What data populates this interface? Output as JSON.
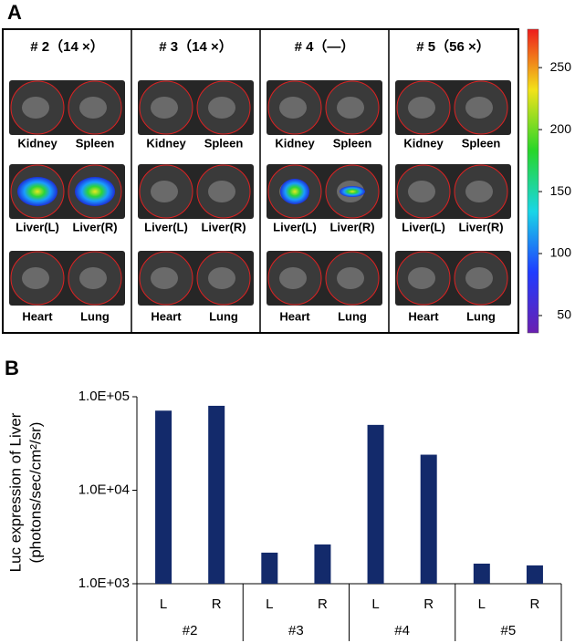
{
  "panel_a": {
    "label": "A",
    "groups": [
      {
        "title": "# 2（14 ×）",
        "rows": [
          [
            "Kidney",
            "Spleen"
          ],
          [
            "Liver(L)",
            "Liver(R)"
          ],
          [
            "Heart",
            "Lung"
          ]
        ]
      },
      {
        "title": "# 3（14 ×）",
        "rows": [
          [
            "Kidney",
            "Spleen"
          ],
          [
            "Liver(L)",
            "Liver(R)"
          ],
          [
            "Heart",
            "Lung"
          ]
        ]
      },
      {
        "title": "# 4（—）",
        "rows": [
          [
            "Kidney",
            "Spleen"
          ],
          [
            "Liver(L)",
            "Liver(R)"
          ],
          [
            "Heart",
            "Lung"
          ]
        ]
      },
      {
        "title": "# 5（56 ×）",
        "rows": [
          [
            "Kidney",
            "Spleen"
          ],
          [
            "Liver(L)",
            "Liver(R)"
          ],
          [
            "Heart",
            "Lung"
          ]
        ]
      }
    ],
    "colorbar": {
      "lim": [
        36,
        281
      ],
      "ticks": [
        50,
        100,
        150,
        200,
        250
      ]
    }
  },
  "chart_data": {
    "type": "bar",
    "label": "B",
    "y_label": [
      "Luc expression of  Liver",
      "(photons/sec/cm²/sr)"
    ],
    "categories": [
      "L",
      "R",
      "L",
      "R",
      "L",
      "R",
      "L",
      "R"
    ],
    "groups": [
      "#2",
      "#3",
      "#4",
      "#5"
    ],
    "values": [
      71000,
      80000,
      2150,
      2630,
      50000,
      24000,
      1640,
      1570
    ],
    "color": "#132a6b",
    "log_scale": true,
    "ylim": [
      1000,
      100000
    ],
    "yticks": [
      {
        "value": 1000,
        "label": "1.0E+03"
      },
      {
        "value": 10000,
        "label": "1.0E+04"
      },
      {
        "value": 100000,
        "label": "1.0E+05"
      }
    ]
  }
}
